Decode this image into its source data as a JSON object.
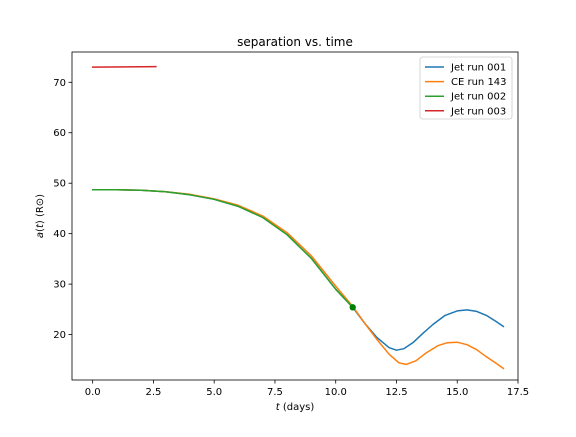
{
  "chart_data": {
    "type": "line",
    "title": "separation vs. time",
    "xlabel": {
      "italic": "t",
      "rest": " (days)"
    },
    "ylabel": {
      "italic": "a",
      "mid": "(",
      "italic2": "t",
      "rest": ") (R⊙)"
    },
    "xlim": [
      -0.85,
      17.5
    ],
    "ylim": [
      11.0,
      76.0
    ],
    "xticks": [
      0.0,
      2.5,
      5.0,
      7.5,
      10.0,
      12.5,
      15.0,
      17.5
    ],
    "xtick_labels": [
      "0.0",
      "2.5",
      "5.0",
      "7.5",
      "10.0",
      "12.5",
      "15.0",
      "17.5"
    ],
    "yticks": [
      20,
      30,
      40,
      50,
      60,
      70
    ],
    "ytick_labels": [
      "20",
      "30",
      "40",
      "50",
      "60",
      "70"
    ],
    "grid": false,
    "legend_position": "top-right",
    "series": [
      {
        "name": "Jet run 001",
        "color": "#1f77b4",
        "x": [
          0,
          1,
          2,
          3,
          4,
          5,
          6,
          7,
          8,
          9,
          10,
          10.7,
          11.2,
          11.7,
          12.2,
          12.5,
          12.8,
          13.2,
          13.6,
          14.0,
          14.5,
          15.0,
          15.4,
          15.8,
          16.2,
          16.6,
          16.9
        ],
        "y": [
          48.7,
          48.7,
          48.6,
          48.3,
          47.7,
          46.8,
          45.4,
          43.2,
          39.8,
          35.1,
          29.0,
          25.4,
          22.2,
          19.4,
          17.4,
          16.9,
          17.2,
          18.5,
          20.3,
          22.0,
          23.8,
          24.7,
          24.9,
          24.6,
          23.8,
          22.6,
          21.6
        ]
      },
      {
        "name": "CE run 143",
        "color": "#ff7f0e",
        "x": [
          0,
          1,
          2,
          3,
          4,
          5,
          6,
          7,
          8,
          9,
          10,
          10.7,
          11.2,
          11.7,
          12.2,
          12.6,
          12.9,
          13.3,
          13.7,
          14.2,
          14.6,
          15.0,
          15.4,
          15.8,
          16.2,
          16.6,
          16.9
        ],
        "y": [
          48.7,
          48.7,
          48.6,
          48.3,
          47.8,
          46.9,
          45.6,
          43.5,
          40.2,
          35.6,
          29.6,
          25.6,
          22.2,
          19.0,
          16.1,
          14.4,
          14.1,
          14.8,
          16.3,
          17.8,
          18.4,
          18.5,
          18.0,
          17.0,
          15.6,
          14.3,
          13.3
        ]
      },
      {
        "name": "Jet run 002",
        "color": "#2ca02c",
        "x": [
          0,
          1,
          2,
          3,
          4,
          5,
          6,
          7,
          8,
          9,
          10,
          10.7
        ],
        "y": [
          48.7,
          48.7,
          48.6,
          48.3,
          47.7,
          46.8,
          45.4,
          43.2,
          39.8,
          35.1,
          29.0,
          25.4
        ]
      },
      {
        "name": "Jet run 003",
        "color": "#d62728",
        "x": [
          0,
          2.6
        ],
        "y": [
          73.0,
          73.1
        ]
      }
    ],
    "marker": {
      "x": 10.7,
      "y": 25.4,
      "color": "#008000"
    }
  }
}
